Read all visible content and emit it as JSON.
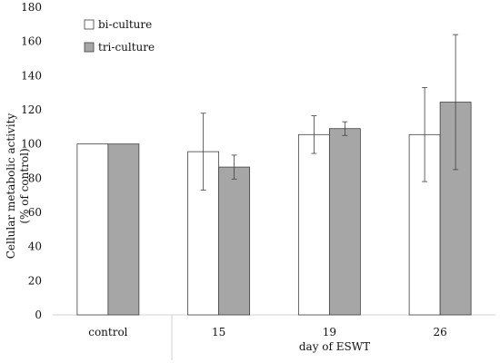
{
  "chart_data": {
    "type": "bar",
    "categories": [
      "control",
      "15",
      "19",
      "26"
    ],
    "series": [
      {
        "name": "bi-culture",
        "color": "#ffffff",
        "values": [
          100,
          95.5,
          105.5,
          105.5
        ],
        "error": [
          0,
          22.5,
          11,
          27.5
        ]
      },
      {
        "name": "tri-culture",
        "color": "#a6a6a6",
        "values": [
          100,
          86.5,
          109,
          124.5
        ],
        "error": [
          0,
          7,
          4,
          39.5
        ]
      }
    ],
    "ylim": [
      0,
      180
    ],
    "yticks": [
      0,
      20,
      40,
      60,
      80,
      100,
      120,
      140,
      160,
      180
    ],
    "ylabel_line1": "Cellular metabolic activity",
    "ylabel_line2": "(% of control)",
    "xlabel": "day of ESWT",
    "legend_position": "top-left",
    "grid": false
  }
}
